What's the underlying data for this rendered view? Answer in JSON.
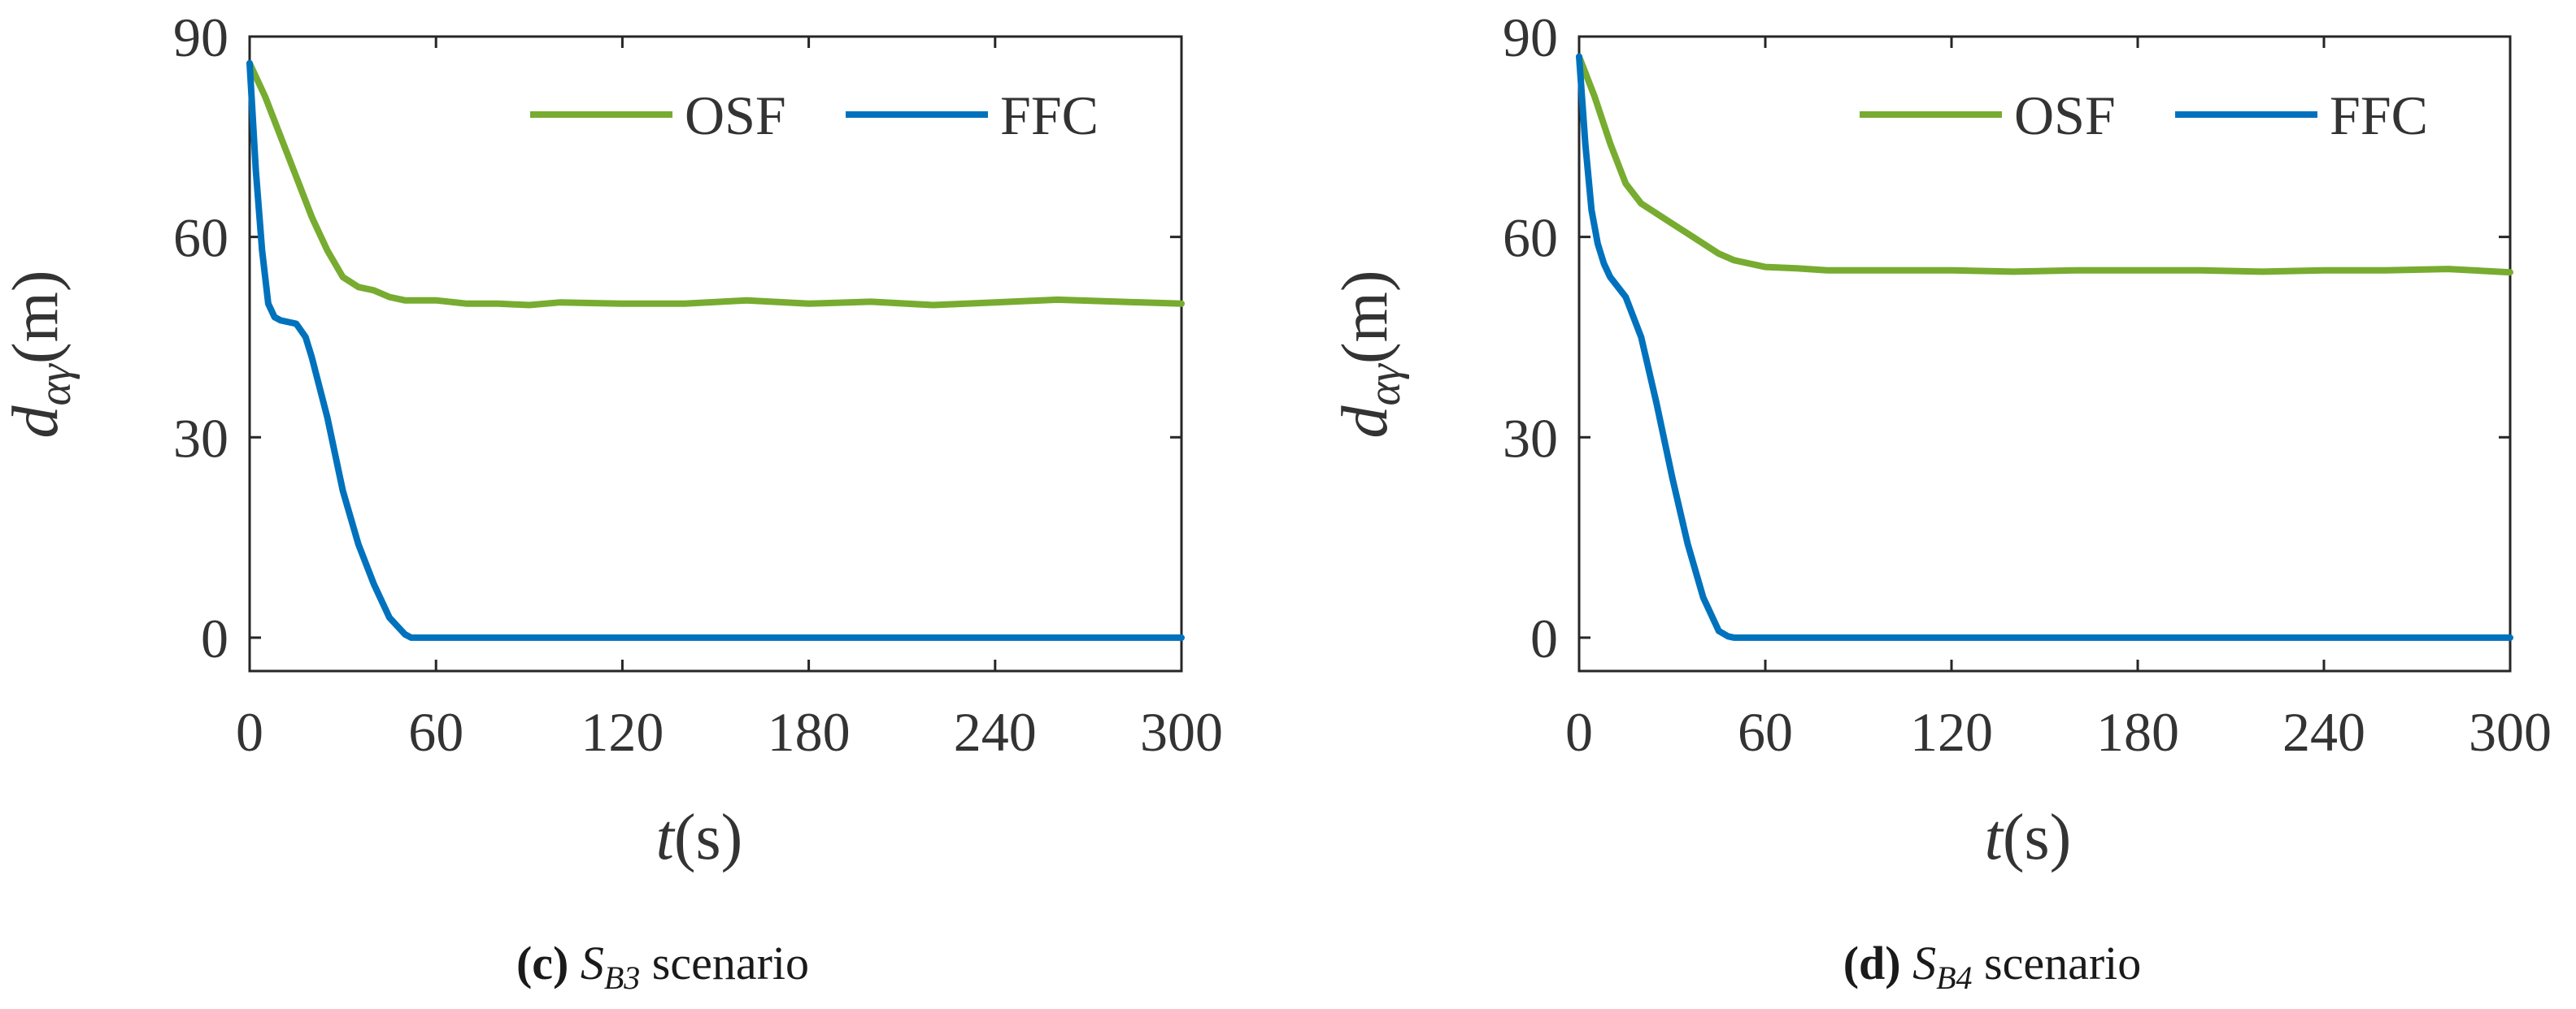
{
  "chart_data": [
    {
      "panel": "c",
      "type": "line",
      "caption": {
        "letter": "(c)",
        "symbol": "S",
        "subscript": "B3",
        "text": "scenario"
      },
      "xlabel": "t(s)",
      "ylabel": "d_{αγ}(m)",
      "ylabel_parts": {
        "base": "d",
        "sub": "αγ",
        "unit": "(m)"
      },
      "xlabel_parts": {
        "base": "t",
        "unit": "(s)"
      },
      "xlim": [
        0,
        300
      ],
      "ylim": [
        -5,
        90
      ],
      "xticks": [
        0,
        60,
        120,
        180,
        240,
        300
      ],
      "xtick_labels": [
        "0",
        "60",
        "120",
        "180",
        "240",
        "300"
      ],
      "yticks": [
        0,
        30,
        60,
        90
      ],
      "ytick_labels": [
        "0",
        "30",
        "60",
        "90"
      ],
      "legend": {
        "position": "top-right",
        "orientation": "horizontal"
      },
      "series": [
        {
          "name": "OSF",
          "color": "#77AC30",
          "x": [
            0,
            5,
            10,
            15,
            20,
            25,
            30,
            35,
            40,
            45,
            50,
            55,
            60,
            70,
            80,
            90,
            100,
            120,
            140,
            160,
            180,
            200,
            220,
            240,
            260,
            280,
            300
          ],
          "y": [
            86,
            81,
            75,
            69,
            63,
            58,
            54,
            52.5,
            52,
            51,
            50.5,
            50.5,
            50.5,
            50,
            50,
            49.8,
            50.2,
            50,
            50,
            50.5,
            50,
            50.3,
            49.8,
            50.2,
            50.6,
            50.3,
            50
          ]
        },
        {
          "name": "FFC",
          "color": "#0072BD",
          "x": [
            0,
            2,
            4,
            6,
            8,
            10,
            15,
            18,
            20,
            25,
            30,
            35,
            40,
            45,
            50,
            52,
            55,
            60,
            80,
            100,
            150,
            200,
            250,
            300
          ],
          "y": [
            86,
            70,
            58,
            50,
            48,
            47.5,
            47,
            45,
            42,
            33,
            22,
            14,
            8,
            3,
            0.5,
            0,
            0,
            0,
            0,
            0,
            0,
            0,
            0,
            0
          ]
        }
      ]
    },
    {
      "panel": "d",
      "type": "line",
      "caption": {
        "letter": "(d)",
        "symbol": "S",
        "subscript": "B4",
        "text": "scenario"
      },
      "xlabel": "t(s)",
      "ylabel": "d_{αγ}(m)",
      "ylabel_parts": {
        "base": "d",
        "sub": "αγ",
        "unit": "(m)"
      },
      "xlabel_parts": {
        "base": "t",
        "unit": "(s)"
      },
      "xlim": [
        0,
        300
      ],
      "ylim": [
        -5,
        90
      ],
      "xticks": [
        0,
        60,
        120,
        180,
        240,
        300
      ],
      "xtick_labels": [
        "0",
        "60",
        "120",
        "180",
        "240",
        "300"
      ],
      "yticks": [
        0,
        30,
        60,
        90
      ],
      "ytick_labels": [
        "0",
        "30",
        "60",
        "90"
      ],
      "legend": {
        "position": "top-right",
        "orientation": "horizontal"
      },
      "series": [
        {
          "name": "OSF",
          "color": "#77AC30",
          "x": [
            0,
            5,
            10,
            15,
            20,
            25,
            30,
            35,
            40,
            45,
            50,
            55,
            60,
            70,
            80,
            90,
            100,
            120,
            140,
            160,
            180,
            200,
            220,
            240,
            260,
            280,
            300
          ],
          "y": [
            87,
            81,
            74,
            68,
            65,
            63.5,
            62,
            60.5,
            59,
            57.5,
            56.5,
            56,
            55.5,
            55.3,
            55,
            55,
            55,
            55,
            54.8,
            55,
            55,
            55,
            54.8,
            55,
            55,
            55.2,
            54.7
          ]
        },
        {
          "name": "FFC",
          "color": "#0072BD",
          "x": [
            0,
            2,
            4,
            6,
            8,
            10,
            15,
            20,
            25,
            30,
            35,
            40,
            45,
            48,
            50,
            55,
            60,
            80,
            100,
            150,
            200,
            250,
            300
          ],
          "y": [
            87,
            74,
            64,
            59,
            56,
            54,
            51,
            45,
            35,
            24,
            14,
            6,
            1,
            0.2,
            0,
            0,
            0,
            0,
            0,
            0,
            0,
            0,
            0
          ]
        }
      ]
    }
  ]
}
